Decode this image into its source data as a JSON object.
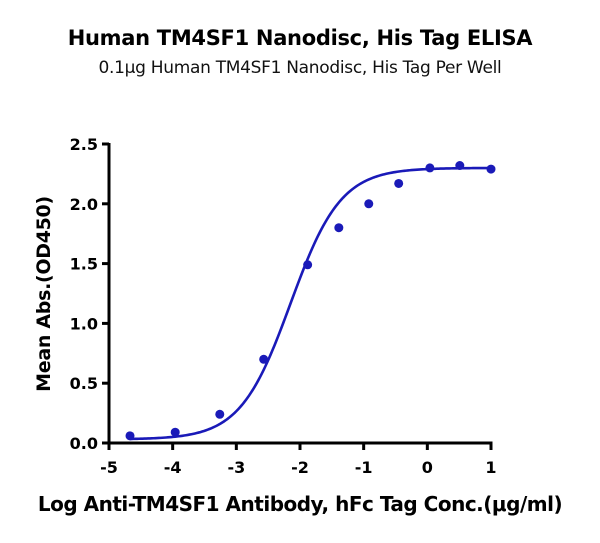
{
  "chart_data": {
    "type": "scatter",
    "title": "Human TM4SF1 Nanodisc, His Tag ELISA",
    "subtitle": "0.1μg Human TM4SF1 Nanodisc, His Tag Per Well",
    "xlabel": "Log Anti-TM4SF1 Antibody, hFc Tag Conc.(μg/ml)",
    "ylabel": "Mean Abs.(OD450)",
    "xlim": [
      -5,
      1
    ],
    "ylim": [
      0,
      2.5
    ],
    "xticks": [
      "-5",
      "-4",
      "-3",
      "-2",
      "-1",
      "0",
      "1"
    ],
    "yticks": [
      "0.0",
      "0.5",
      "1.0",
      "1.5",
      "2.0",
      "2.5"
    ],
    "grid": false,
    "legend": null,
    "series": [
      {
        "name": "Mean Abs.(OD450)",
        "color": "#1a1ab8",
        "x": [
          -4.67,
          -3.96,
          -3.26,
          -2.57,
          -1.88,
          -1.39,
          -0.92,
          -0.45,
          0.04,
          0.51,
          1.0
        ],
        "y": [
          0.06,
          0.09,
          0.24,
          0.7,
          1.49,
          1.8,
          2.0,
          2.17,
          2.3,
          2.32,
          2.29
        ]
      }
    ],
    "fit": {
      "model": "4PL sigmoidal",
      "color": "#1a1ab8",
      "bottom": 0.03,
      "top": 2.3,
      "logEC50": -2.15,
      "hill": 1.1
    }
  }
}
